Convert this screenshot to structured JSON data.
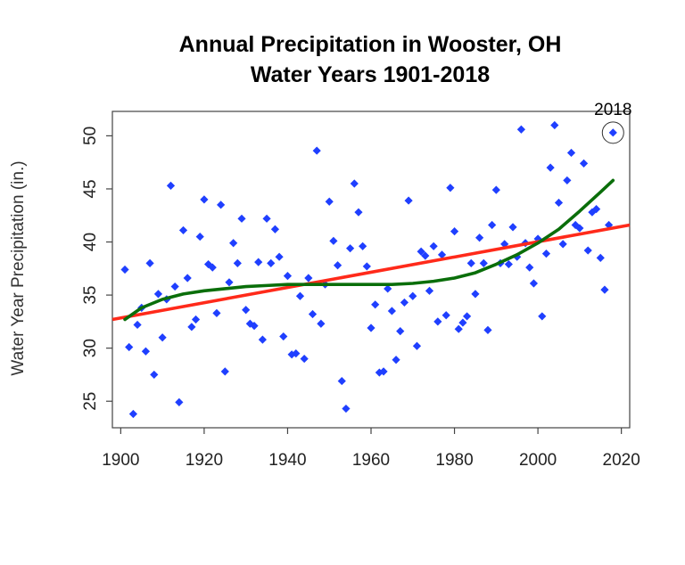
{
  "chart_data": {
    "type": "scatter",
    "title": "Annual Precipitation in Wooster, OH",
    "subtitle": "Water Years 1901-2018",
    "xlabel": "",
    "ylabel": "Water Year Precipitation (in.)",
    "xlim": [
      1898,
      2022
    ],
    "ylim": [
      22.5,
      52.3
    ],
    "xticks": [
      1900,
      1920,
      1940,
      1960,
      1980,
      2000,
      2020
    ],
    "yticks": [
      25,
      30,
      35,
      40,
      45,
      50
    ],
    "grid": false,
    "colors": {
      "points": "#1f3fff",
      "trend": "#ff2a1a",
      "smooth": "#0a6e0a",
      "frame": "#444444"
    },
    "annotation": {
      "label": "2018",
      "x": 2018,
      "y": 50.3
    },
    "series": [
      {
        "name": "Annual precipitation",
        "kind": "points",
        "points": [
          [
            1901,
            37.4
          ],
          [
            1902,
            30.1
          ],
          [
            1903,
            23.8
          ],
          [
            1904,
            32.2
          ],
          [
            1905,
            33.8
          ],
          [
            1906,
            29.7
          ],
          [
            1907,
            38.0
          ],
          [
            1908,
            27.5
          ],
          [
            1909,
            35.1
          ],
          [
            1910,
            31.0
          ],
          [
            1911,
            34.6
          ],
          [
            1912,
            45.3
          ],
          [
            1913,
            35.8
          ],
          [
            1914,
            24.9
          ],
          [
            1915,
            41.1
          ],
          [
            1916,
            36.6
          ],
          [
            1917,
            32.0
          ],
          [
            1918,
            32.7
          ],
          [
            1919,
            40.5
          ],
          [
            1920,
            44.0
          ],
          [
            1921,
            37.9
          ],
          [
            1922,
            37.6
          ],
          [
            1923,
            33.3
          ],
          [
            1924,
            43.5
          ],
          [
            1925,
            27.8
          ],
          [
            1926,
            36.2
          ],
          [
            1927,
            39.9
          ],
          [
            1928,
            38.0
          ],
          [
            1929,
            42.2
          ],
          [
            1930,
            33.6
          ],
          [
            1931,
            32.3
          ],
          [
            1932,
            32.1
          ],
          [
            1933,
            38.1
          ],
          [
            1934,
            30.8
          ],
          [
            1935,
            42.2
          ],
          [
            1936,
            38.0
          ],
          [
            1937,
            41.2
          ],
          [
            1938,
            38.6
          ],
          [
            1939,
            31.1
          ],
          [
            1940,
            36.8
          ],
          [
            1941,
            29.4
          ],
          [
            1942,
            29.5
          ],
          [
            1943,
            34.9
          ],
          [
            1944,
            29.0
          ],
          [
            1945,
            36.6
          ],
          [
            1946,
            33.2
          ],
          [
            1947,
            48.6
          ],
          [
            1948,
            32.3
          ],
          [
            1949,
            36.0
          ],
          [
            1950,
            43.8
          ],
          [
            1951,
            40.1
          ],
          [
            1952,
            37.8
          ],
          [
            1953,
            26.9
          ],
          [
            1954,
            24.3
          ],
          [
            1955,
            39.4
          ],
          [
            1956,
            45.5
          ],
          [
            1957,
            42.8
          ],
          [
            1958,
            39.6
          ],
          [
            1959,
            37.7
          ],
          [
            1960,
            31.9
          ],
          [
            1961,
            34.1
          ],
          [
            1962,
            27.7
          ],
          [
            1963,
            27.8
          ],
          [
            1964,
            35.6
          ],
          [
            1965,
            33.5
          ],
          [
            1966,
            28.9
          ],
          [
            1967,
            31.6
          ],
          [
            1968,
            34.3
          ],
          [
            1969,
            43.9
          ],
          [
            1970,
            34.9
          ],
          [
            1971,
            30.2
          ],
          [
            1972,
            39.1
          ],
          [
            1973,
            38.7
          ],
          [
            1974,
            35.4
          ],
          [
            1975,
            39.6
          ],
          [
            1976,
            32.5
          ],
          [
            1977,
            38.8
          ],
          [
            1978,
            33.1
          ],
          [
            1979,
            45.1
          ],
          [
            1980,
            41.0
          ],
          [
            1981,
            31.8
          ],
          [
            1982,
            32.4
          ],
          [
            1983,
            33.0
          ],
          [
            1984,
            38.0
          ],
          [
            1985,
            35.1
          ],
          [
            1986,
            40.4
          ],
          [
            1987,
            38.0
          ],
          [
            1988,
            31.7
          ],
          [
            1989,
            41.6
          ],
          [
            1990,
            44.9
          ],
          [
            1991,
            38.0
          ],
          [
            1992,
            39.8
          ],
          [
            1993,
            37.9
          ],
          [
            1994,
            41.4
          ],
          [
            1995,
            38.6
          ],
          [
            1996,
            50.6
          ],
          [
            1997,
            39.9
          ],
          [
            1998,
            37.6
          ],
          [
            1999,
            36.1
          ],
          [
            2000,
            40.3
          ],
          [
            2001,
            33.0
          ],
          [
            2002,
            38.9
          ],
          [
            2003,
            47.0
          ],
          [
            2004,
            51.0
          ],
          [
            2005,
            43.7
          ],
          [
            2006,
            39.8
          ],
          [
            2007,
            45.8
          ],
          [
            2008,
            48.4
          ],
          [
            2009,
            41.6
          ],
          [
            2010,
            41.3
          ],
          [
            2011,
            47.4
          ],
          [
            2012,
            39.2
          ],
          [
            2013,
            42.8
          ],
          [
            2014,
            43.1
          ],
          [
            2015,
            38.5
          ],
          [
            2016,
            35.5
          ],
          [
            2017,
            41.6
          ],
          [
            2018,
            50.3
          ]
        ]
      },
      {
        "name": "Linear trend",
        "kind": "line",
        "points": [
          [
            1898,
            32.7
          ],
          [
            2022,
            41.6
          ]
        ]
      },
      {
        "name": "Smoothed trend",
        "kind": "line",
        "points": [
          [
            1901,
            32.7
          ],
          [
            1905,
            33.8
          ],
          [
            1910,
            34.6
          ],
          [
            1915,
            35.1
          ],
          [
            1920,
            35.4
          ],
          [
            1925,
            35.6
          ],
          [
            1930,
            35.8
          ],
          [
            1935,
            35.9
          ],
          [
            1940,
            36.0
          ],
          [
            1945,
            36.0
          ],
          [
            1950,
            36.0
          ],
          [
            1955,
            36.0
          ],
          [
            1960,
            36.0
          ],
          [
            1965,
            36.0
          ],
          [
            1970,
            36.1
          ],
          [
            1975,
            36.3
          ],
          [
            1980,
            36.6
          ],
          [
            1985,
            37.1
          ],
          [
            1990,
            37.9
          ],
          [
            1995,
            38.8
          ],
          [
            2000,
            39.9
          ],
          [
            2005,
            41.2
          ],
          [
            2010,
            42.9
          ],
          [
            2015,
            44.7
          ],
          [
            2018,
            45.8
          ]
        ]
      }
    ]
  }
}
